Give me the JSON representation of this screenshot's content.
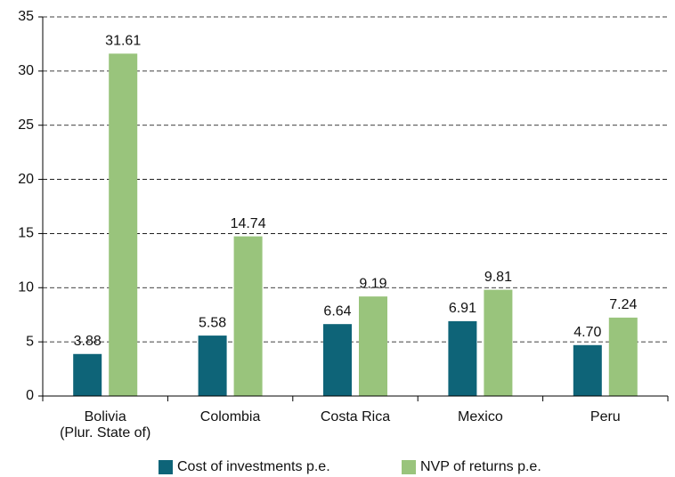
{
  "chart_data": {
    "type": "bar",
    "categories": [
      "Bolivia\n(Plur. State of)",
      "Colombia",
      "Costa Rica",
      "Mexico",
      "Peru"
    ],
    "series": [
      {
        "name": "Cost of investments p.e.",
        "color": "#0e6478",
        "values": [
          3.88,
          5.58,
          6.64,
          6.91,
          4.7
        ],
        "value_labels": [
          "3.88",
          "5.58",
          "6.64",
          "6.91",
          "4.70"
        ]
      },
      {
        "name": "NVP of returns p.e.",
        "color": "#99c47c",
        "values": [
          31.61,
          14.74,
          9.19,
          9.81,
          7.24
        ],
        "value_labels": [
          "31.61",
          "14.74",
          "9.19",
          "9.81",
          "7.24"
        ]
      }
    ],
    "ylim": [
      0,
      35
    ],
    "yticks": [
      0,
      5,
      10,
      15,
      20,
      25,
      30,
      35
    ],
    "grid": true,
    "legend": "bottom"
  }
}
